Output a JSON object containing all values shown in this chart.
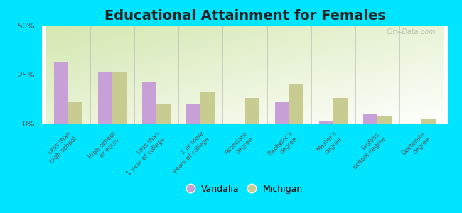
{
  "title": "Educational Attainment for Females",
  "categories": [
    "Less than\nhigh school",
    "High school\nor equiv.",
    "Less than\n1 year of college",
    "1 or more\nyears of college",
    "Associate\ndegree",
    "Bachelor's\ndegree",
    "Master's\ndegree",
    "Profess.\nschool degree",
    "Doctorate\ndegree"
  ],
  "vandalia": [
    31,
    26,
    21,
    10,
    0,
    11,
    1,
    5,
    0
  ],
  "michigan": [
    11,
    26,
    10,
    16,
    13,
    20,
    13,
    4,
    2
  ],
  "vandalia_color": "#c8a0d8",
  "michigan_color": "#c8cc90",
  "outer_background": "#00e5ff",
  "ylim": [
    0,
    50
  ],
  "yticks": [
    0,
    25,
    50
  ],
  "ytick_labels": [
    "0%",
    "25%",
    "50%"
  ],
  "title_fontsize": 14,
  "legend_labels": [
    "Vandalia",
    "Michigan"
  ],
  "bar_width": 0.32,
  "tick_label_fontsize": 6.2,
  "tick_label_rotation": 45
}
